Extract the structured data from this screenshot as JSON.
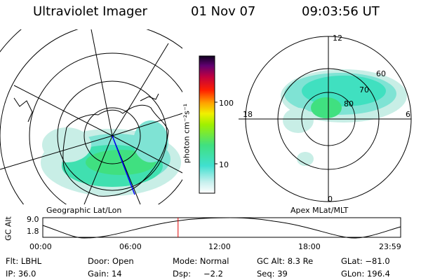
{
  "header": {
    "instrument": "Ultraviolet Imager",
    "date": "01 Nov 07",
    "time": "09:03:56 UT"
  },
  "left_map": {
    "caption": "Geographic Lat/Lon"
  },
  "right_map": {
    "caption": "Apex MLat/MLT",
    "mlt_labels": {
      "top": "12",
      "bottom": "0",
      "left": "18",
      "right": "6"
    },
    "lat_labels": [
      "60",
      "70",
      "80"
    ]
  },
  "colorbar": {
    "label": "photon cm⁻²s⁻¹",
    "ticks": [
      "100",
      "10"
    ],
    "scale": "log"
  },
  "altitude_strip": {
    "ylabel": "GC Alt",
    "ymax": "9.0",
    "ymin": "1.8",
    "time_ticks": [
      "00:00",
      "06:00",
      "12:00",
      "18:00",
      "23:59"
    ],
    "current_time_marker": "09:03:56",
    "marker_color": "#e00000"
  },
  "status": {
    "filter": "Flt: LBHL",
    "door": "Door: Open",
    "mode": "Mode: Normal",
    "gc_alt": "GC Alt: 8.3 Re",
    "glat": "GLat: −81.0",
    "ip": "IP: 36.0",
    "gain": "Gain: 14",
    "dsp_label": "Dsp:",
    "dsp_value": "−2.2",
    "seq": "Seq: 39",
    "glon": "GLon: 196.4"
  },
  "colors": {
    "aurora_light": "#c8eee6",
    "aurora_mid": "#38d8c8",
    "aurora_green": "#40e080",
    "ground_track": "#0000ff"
  }
}
